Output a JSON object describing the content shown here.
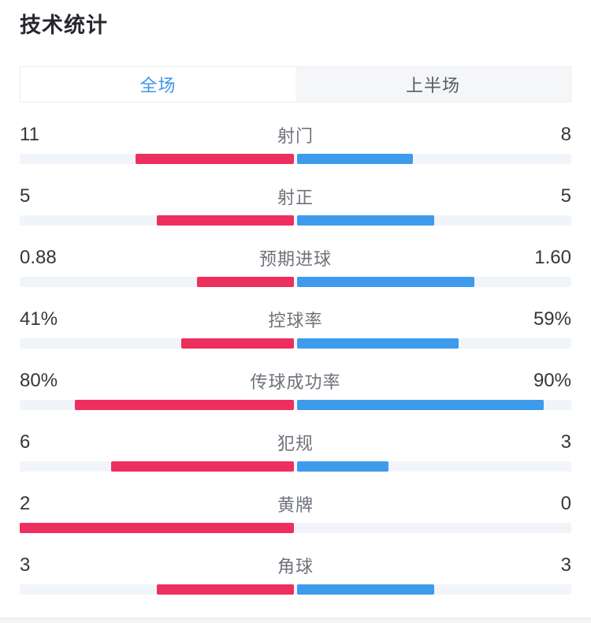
{
  "page": {
    "title": "技术统计"
  },
  "tabs": [
    {
      "label": "全场",
      "active": true
    },
    {
      "label": "上半场",
      "active": false
    }
  ],
  "colors": {
    "home": "#ed2f5f",
    "away": "#3e9bec",
    "track": "#f1f5f9",
    "tab_active_text": "#3b97e8",
    "tab_inactive_text": "#565b62",
    "tab_bg": "#f5f6f7",
    "tab_border": "#ededf0"
  },
  "chart_data": {
    "type": "bar",
    "orientation": "horizontal-paired-from-center",
    "legend_position": "none",
    "grid": false,
    "categories": [
      "射门",
      "射正",
      "预期进球",
      "控球率",
      "传球成功率",
      "犯规",
      "黄牌",
      "角球"
    ],
    "series": [
      {
        "name": "home-red-left",
        "values": [
          11,
          5,
          0.88,
          41,
          80,
          6,
          2,
          3
        ]
      },
      {
        "name": "away-blue-right",
        "values": [
          8,
          5,
          1.6,
          59,
          90,
          3,
          0,
          3
        ]
      }
    ],
    "stats": [
      {
        "label": "射门",
        "left": "11",
        "right": "8",
        "left_value": 11,
        "right_value": 8,
        "scale": "share"
      },
      {
        "label": "射正",
        "left": "5",
        "right": "5",
        "left_value": 5,
        "right_value": 5,
        "scale": "share"
      },
      {
        "label": "预期进球",
        "left": "0.88",
        "right": "1.60",
        "left_value": 0.88,
        "right_value": 1.6,
        "scale": "share"
      },
      {
        "label": "控球率",
        "left": "41%",
        "right": "59%",
        "left_value": 41,
        "right_value": 59,
        "scale": "percent"
      },
      {
        "label": "传球成功率",
        "left": "80%",
        "right": "90%",
        "left_value": 80,
        "right_value": 90,
        "scale": "percent"
      },
      {
        "label": "犯规",
        "left": "6",
        "right": "3",
        "left_value": 6,
        "right_value": 3,
        "scale": "share"
      },
      {
        "label": "黄牌",
        "left": "2",
        "right": "0",
        "left_value": 2,
        "right_value": 0,
        "scale": "share"
      },
      {
        "label": "角球",
        "left": "3",
        "right": "3",
        "left_value": 3,
        "right_value": 3,
        "scale": "share"
      }
    ]
  }
}
